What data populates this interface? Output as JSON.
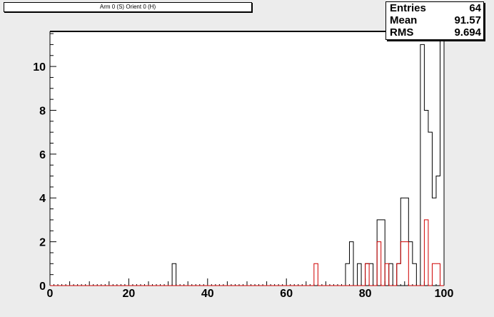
{
  "title": "Arm 0 (S) Orient 0 (H)",
  "stats": [
    {
      "key": "Entries",
      "value": "64"
    },
    {
      "key": "Mean",
      "value": "91.57"
    },
    {
      "key": "RMS",
      "value": "9.694"
    }
  ],
  "colors": {
    "background": "#ececec",
    "frame": "#ffffff",
    "series_black": "#000000",
    "series_red": "#d00000"
  },
  "chart_data": {
    "type": "histogram",
    "title": "Arm 0 (S) Orient 0 (H)",
    "xlabel": "",
    "ylabel": "",
    "xlim": [
      0,
      100
    ],
    "ylim": [
      0,
      11.6
    ],
    "bin_width": 1,
    "x_ticks": [
      0,
      20,
      40,
      60,
      80,
      100
    ],
    "y_ticks": [
      0,
      2,
      4,
      6,
      8,
      10
    ],
    "grid": false,
    "series": [
      {
        "color": "#000000",
        "bins": [
          {
            "x": 31,
            "y": 1
          },
          {
            "x": 75,
            "y": 1
          },
          {
            "x": 76,
            "y": 2
          },
          {
            "x": 78,
            "y": 1
          },
          {
            "x": 80,
            "y": 1
          },
          {
            "x": 81,
            "y": 1
          },
          {
            "x": 83,
            "y": 3
          },
          {
            "x": 84,
            "y": 3
          },
          {
            "x": 86,
            "y": 1
          },
          {
            "x": 88,
            "y": 1
          },
          {
            "x": 89,
            "y": 4
          },
          {
            "x": 90,
            "y": 4
          },
          {
            "x": 91,
            "y": 2
          },
          {
            "x": 92,
            "y": 1
          },
          {
            "x": 94,
            "y": 11
          },
          {
            "x": 95,
            "y": 8
          },
          {
            "x": 96,
            "y": 7
          },
          {
            "x": 97,
            "y": 4
          },
          {
            "x": 98,
            "y": 5
          },
          {
            "x": 99,
            "y": 11.6
          }
        ]
      },
      {
        "color": "#d00000",
        "bins": [
          {
            "x": 67,
            "y": 1
          },
          {
            "x": 80,
            "y": 1
          },
          {
            "x": 83,
            "y": 2
          },
          {
            "x": 85,
            "y": 1
          },
          {
            "x": 88,
            "y": 1
          },
          {
            "x": 89,
            "y": 2
          },
          {
            "x": 90,
            "y": 2
          },
          {
            "x": 95,
            "y": 3
          },
          {
            "x": 97,
            "y": 1
          },
          {
            "x": 98,
            "y": 1
          }
        ]
      }
    ]
  }
}
